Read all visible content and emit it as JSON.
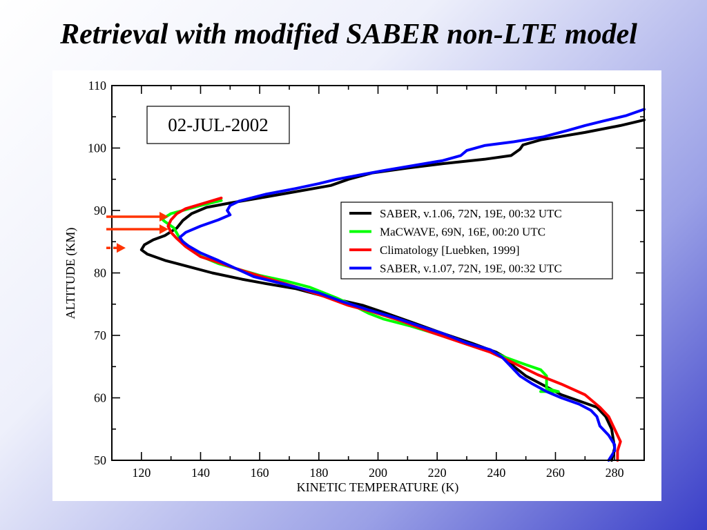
{
  "slide": {
    "title": "Retrieval with modified SABER non-LTE model"
  },
  "colors": {
    "background_start": "#ffffff",
    "background_end": "#3a3fc8",
    "arrows": "#ff3300"
  },
  "chart_data": {
    "type": "line",
    "title": "",
    "annotation_box": "02-JUL-2002",
    "xlabel": "KINETIC TEMPERATURE (K)",
    "ylabel": "ALTITUDE (KM)",
    "xlim": [
      110,
      290
    ],
    "ylim": [
      50,
      110
    ],
    "xticks": [
      120,
      140,
      160,
      180,
      200,
      220,
      240,
      260,
      280
    ],
    "yticks": [
      50,
      60,
      70,
      80,
      90,
      100,
      110
    ],
    "grid": false,
    "legend_position": "top-right",
    "series": [
      {
        "name": "SABER, v.1.06, 72N, 19E, 00:32 UTC",
        "color": "#000000",
        "points": [
          [
            279,
            50
          ],
          [
            280,
            52
          ],
          [
            279,
            55
          ],
          [
            277,
            57
          ],
          [
            274,
            58.5
          ],
          [
            268,
            59.5
          ],
          [
            262,
            60.5
          ],
          [
            256,
            62
          ],
          [
            250,
            63.5
          ],
          [
            246,
            65
          ],
          [
            243,
            66.5
          ],
          [
            240,
            67.3
          ],
          [
            232,
            68.7
          ],
          [
            222,
            70.3
          ],
          [
            212,
            72
          ],
          [
            203,
            73.5
          ],
          [
            195,
            74.8
          ],
          [
            184,
            76
          ],
          [
            172,
            77.5
          ],
          [
            162,
            78.3
          ],
          [
            154,
            79
          ],
          [
            144,
            80
          ],
          [
            136,
            81
          ],
          [
            128,
            82
          ],
          [
            122,
            83
          ],
          [
            120,
            83.7
          ],
          [
            121,
            84.5
          ],
          [
            124,
            85.3
          ],
          [
            128,
            86
          ],
          [
            132,
            87.2
          ],
          [
            134,
            88.4
          ],
          [
            137,
            89.5
          ],
          [
            142,
            90.5
          ],
          [
            150,
            91.2
          ],
          [
            160,
            92
          ],
          [
            172,
            93
          ],
          [
            184,
            94
          ],
          [
            190,
            95
          ],
          [
            198,
            96
          ],
          [
            210,
            96.8
          ],
          [
            222,
            97.5
          ],
          [
            236,
            98.2
          ],
          [
            245,
            98.8
          ],
          [
            248,
            99.8
          ],
          [
            249,
            100.5
          ],
          [
            255,
            101.3
          ],
          [
            270,
            102.5
          ],
          [
            282,
            103.6
          ],
          [
            290,
            104.5
          ]
        ]
      },
      {
        "name": "MaCWAVE, 69N, 16E, 00:20 UTC",
        "color": "#00ff00",
        "points": [
          [
            255,
            61
          ],
          [
            261,
            61
          ],
          [
            257,
            61.5
          ],
          [
            257,
            63.5
          ],
          [
            255,
            64.5
          ],
          [
            250,
            65.3
          ],
          [
            243,
            66.5
          ],
          [
            238,
            67.5
          ],
          [
            230,
            68.7
          ],
          [
            220,
            70.2
          ],
          [
            211,
            71.5
          ],
          [
            202,
            72.6
          ],
          [
            197,
            73.5
          ],
          [
            192,
            74.7
          ],
          [
            186,
            76
          ],
          [
            177,
            77.7
          ],
          [
            169,
            78.7
          ],
          [
            160,
            79.6
          ],
          [
            152,
            80.7
          ],
          [
            146,
            81.5
          ],
          [
            140,
            82.7
          ],
          [
            136,
            84.2
          ],
          [
            133,
            85.5
          ],
          [
            131,
            87.2
          ],
          [
            128,
            88.2
          ],
          [
            127,
            88.6
          ],
          [
            130,
            89.5
          ],
          [
            134,
            90
          ],
          [
            140,
            90.8
          ],
          [
            147,
            91.6
          ]
        ]
      },
      {
        "name": "Climatology [Luebken, 1999]",
        "color": "#ff0000",
        "points": [
          [
            281,
            50
          ],
          [
            281,
            51.5
          ],
          [
            282,
            53
          ],
          [
            280,
            55
          ],
          [
            278,
            57
          ],
          [
            275,
            58.5
          ],
          [
            270,
            60.5
          ],
          [
            262,
            62.2
          ],
          [
            254,
            63.7
          ],
          [
            244,
            66
          ],
          [
            238,
            67.3
          ],
          [
            228,
            68.9
          ],
          [
            218,
            70.5
          ],
          [
            208,
            72.3
          ],
          [
            198,
            73.8
          ],
          [
            190,
            74.8
          ],
          [
            182,
            76.2
          ],
          [
            172,
            77.8
          ],
          [
            162,
            79.2
          ],
          [
            152,
            80.7
          ],
          [
            146,
            81.7
          ],
          [
            140,
            82.6
          ],
          [
            135,
            84.2
          ],
          [
            132,
            85.5
          ],
          [
            130,
            86.5
          ],
          [
            129,
            87.5
          ],
          [
            130,
            88.5
          ],
          [
            132,
            89.5
          ],
          [
            135,
            90.3
          ],
          [
            140,
            91
          ],
          [
            147,
            92
          ]
        ]
      },
      {
        "name": "SABER, v.1.07, 72N, 19E, 00:32 UTC",
        "color": "#0000ff",
        "points": [
          [
            278,
            50
          ],
          [
            280,
            51.5
          ],
          [
            280,
            52.5
          ],
          [
            278,
            54
          ],
          [
            275,
            55.5
          ],
          [
            274,
            57
          ],
          [
            272,
            58
          ],
          [
            268,
            59
          ],
          [
            262,
            60
          ],
          [
            257,
            61
          ],
          [
            252,
            62.3
          ],
          [
            248,
            63.5
          ],
          [
            244,
            65.5
          ],
          [
            242,
            66.5
          ],
          [
            238,
            67.7
          ],
          [
            230,
            68.8
          ],
          [
            222,
            70.3
          ],
          [
            214,
            71.5
          ],
          [
            206,
            72.8
          ],
          [
            196,
            74.2
          ],
          [
            188,
            75.4
          ],
          [
            180,
            76.8
          ],
          [
            170,
            78
          ],
          [
            158,
            79.4
          ],
          [
            152,
            80.7
          ],
          [
            146,
            82
          ],
          [
            140,
            83.2
          ],
          [
            136,
            84.3
          ],
          [
            134,
            85
          ],
          [
            133,
            85.7
          ],
          [
            135,
            86.5
          ],
          [
            140,
            87.5
          ],
          [
            146,
            88.5
          ],
          [
            150,
            89.3
          ],
          [
            149,
            90
          ],
          [
            150,
            90.8
          ],
          [
            153,
            91.5
          ],
          [
            162,
            92.6
          ],
          [
            172,
            93.5
          ],
          [
            180,
            94.3
          ],
          [
            186,
            95
          ],
          [
            194,
            95.7
          ],
          [
            202,
            96.4
          ],
          [
            212,
            97.2
          ],
          [
            222,
            98
          ],
          [
            228,
            98.8
          ],
          [
            230,
            99.6
          ],
          [
            236,
            100.4
          ],
          [
            246,
            101
          ],
          [
            256,
            101.8
          ],
          [
            264,
            102.8
          ],
          [
            270,
            103.6
          ],
          [
            276,
            104.3
          ],
          [
            284,
            105.2
          ],
          [
            290,
            106.2
          ]
        ]
      }
    ],
    "arrows": [
      {
        "altitude": 89,
        "style": "solid"
      },
      {
        "altitude": 87,
        "style": "solid"
      },
      {
        "altitude": 84,
        "style": "dashed"
      }
    ]
  }
}
